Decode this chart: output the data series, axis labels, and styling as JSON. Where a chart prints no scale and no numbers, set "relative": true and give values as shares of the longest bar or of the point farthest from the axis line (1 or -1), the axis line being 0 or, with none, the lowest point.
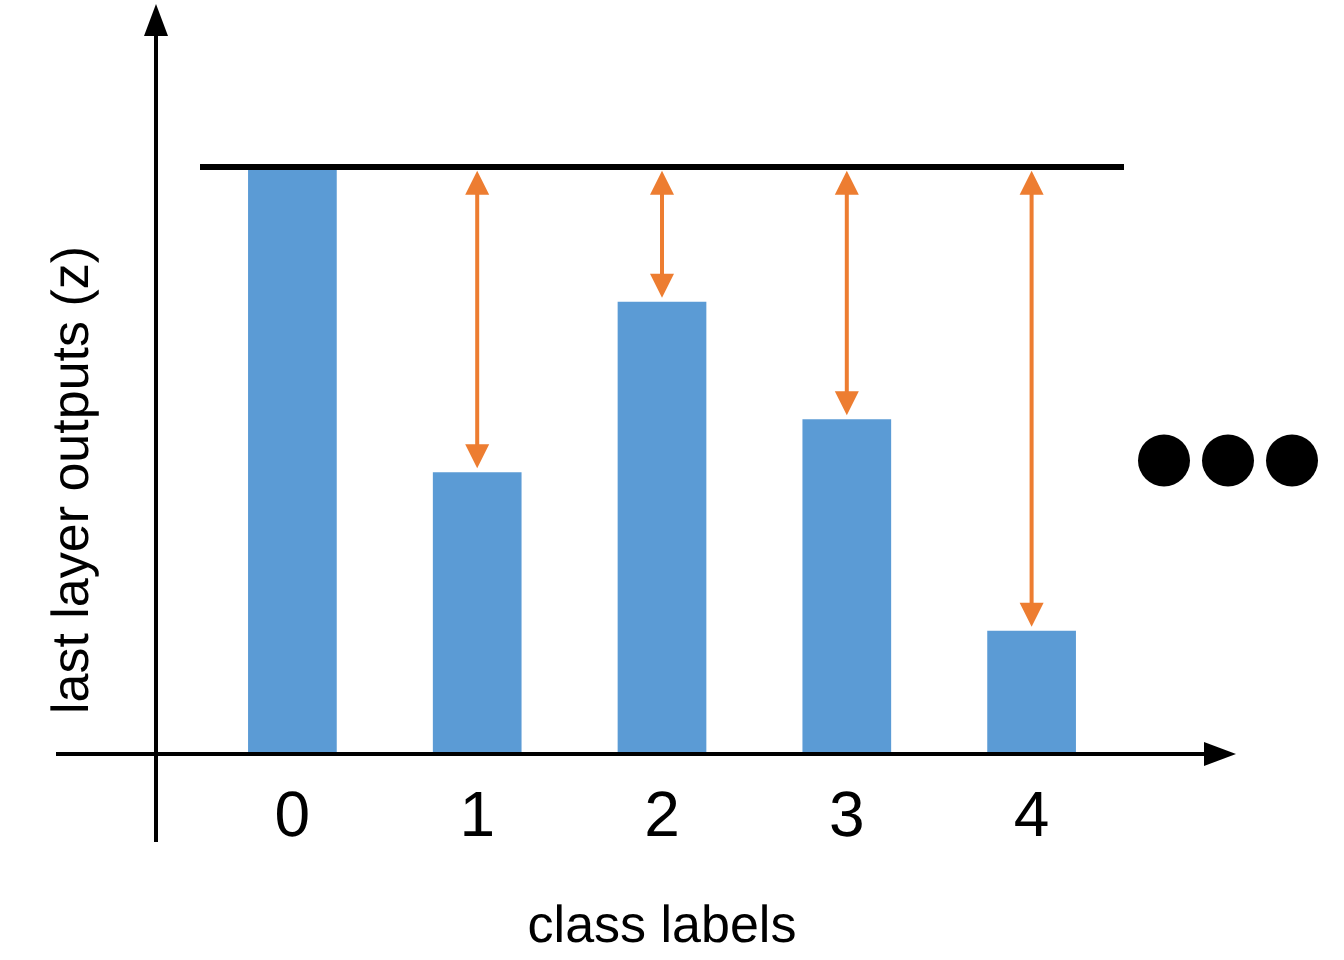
{
  "chart_data": {
    "type": "bar",
    "xlabel": "class labels",
    "ylabel": "last layer outputs (z)",
    "categories": [
      "0",
      "1",
      "2",
      "3",
      "4"
    ],
    "values": [
      1,
      0.48,
      0.77,
      0.57,
      0.21
    ],
    "color": "#5b9bd5",
    "relative": true,
    "ref_lines": [
      {
        "axis": "y",
        "value": 1,
        "color": "#000000"
      }
    ]
  }
}
